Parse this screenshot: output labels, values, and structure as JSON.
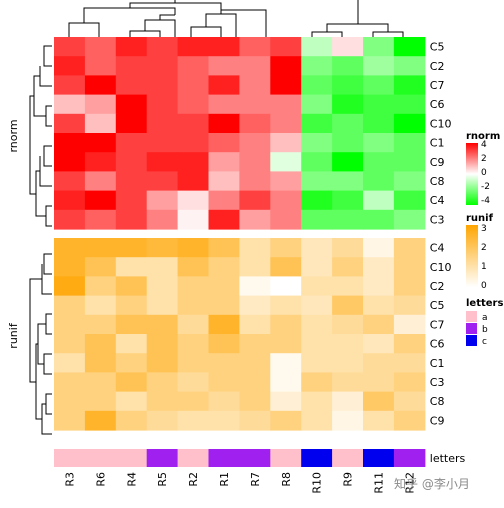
{
  "chart_data": [
    {
      "type": "heatmap",
      "name_label": "rnorm",
      "columns": [
        "R3",
        "R6",
        "R4",
        "R5",
        "R2",
        "R1",
        "R7",
        "R8",
        "R10",
        "R9",
        "R11",
        "R12"
      ],
      "rows": [
        "C5",
        "C2",
        "C7",
        "C6",
        "C10",
        "C1",
        "C9",
        "C8",
        "C4",
        "C3"
      ],
      "values": [
        [
          3.0,
          2.5,
          3.5,
          3.0,
          3.5,
          3.5,
          2.5,
          3.0,
          -1.0,
          0.5,
          -2.0,
          -4.0
        ],
        [
          3.5,
          2.5,
          3.0,
          3.0,
          2.5,
          2.0,
          2.0,
          4.0,
          -2.0,
          -2.5,
          -1.5,
          -2.0
        ],
        [
          3.0,
          4.0,
          3.0,
          3.0,
          2.5,
          3.5,
          2.0,
          4.0,
          -2.5,
          -3.0,
          -2.5,
          -3.5
        ],
        [
          1.0,
          1.5,
          4.0,
          3.0,
          2.5,
          2.0,
          2.0,
          2.0,
          -2.0,
          -3.5,
          -3.0,
          -3.0
        ],
        [
          3.0,
          1.0,
          4.0,
          3.0,
          3.0,
          4.0,
          2.5,
          2.0,
          -3.0,
          -2.5,
          -3.0,
          -4.0
        ],
        [
          4.0,
          4.0,
          3.0,
          3.0,
          3.0,
          2.5,
          2.0,
          1.0,
          -2.0,
          -2.5,
          -2.0,
          -2.5
        ],
        [
          4.0,
          3.5,
          3.0,
          3.5,
          3.5,
          1.5,
          2.0,
          -0.5,
          -2.5,
          -4.0,
          -2.5,
          -2.5
        ],
        [
          3.0,
          2.0,
          3.0,
          3.0,
          3.5,
          1.0,
          2.0,
          1.5,
          -2.0,
          -2.0,
          -2.5,
          -2.0
        ],
        [
          3.5,
          4.0,
          3.0,
          1.5,
          0.5,
          2.0,
          3.0,
          2.0,
          -3.5,
          -3.0,
          -1.0,
          -3.0
        ],
        [
          3.0,
          2.5,
          3.0,
          2.0,
          0.2,
          3.5,
          1.5,
          2.0,
          -2.5,
          -2.5,
          -2.5,
          -2.0
        ]
      ],
      "legend": {
        "title": "rnorm",
        "ticks": [
          4,
          2,
          0,
          -2,
          -4
        ]
      }
    },
    {
      "type": "heatmap",
      "name_label": "runif",
      "columns": [
        "R3",
        "R6",
        "R4",
        "R5",
        "R2",
        "R1",
        "R7",
        "R8",
        "R10",
        "R9",
        "R11",
        "R12"
      ],
      "rows": [
        "C4",
        "C10",
        "C2",
        "C5",
        "C7",
        "C6",
        "C1",
        "C3",
        "C8",
        "C9"
      ],
      "values": [
        [
          2.5,
          2.5,
          2.5,
          2.3,
          2.5,
          2.0,
          1.0,
          1.5,
          0.8,
          1.2,
          0.3,
          1.5
        ],
        [
          2.5,
          2.0,
          1.0,
          1.0,
          2.0,
          1.5,
          1.0,
          2.0,
          0.8,
          1.5,
          0.7,
          1.5
        ],
        [
          2.8,
          1.5,
          2.0,
          1.0,
          1.5,
          1.5,
          0.2,
          0.0,
          1.0,
          1.0,
          0.7,
          1.5
        ],
        [
          1.5,
          1.0,
          1.5,
          1.0,
          1.5,
          1.5,
          0.7,
          1.0,
          0.8,
          1.8,
          1.0,
          1.2
        ],
        [
          1.5,
          1.5,
          2.0,
          2.0,
          1.2,
          2.5,
          1.0,
          1.5,
          1.0,
          1.2,
          1.5,
          0.5
        ],
        [
          1.5,
          2.0,
          1.0,
          2.0,
          1.5,
          2.0,
          1.5,
          1.5,
          1.0,
          1.0,
          0.8,
          1.5
        ],
        [
          1.0,
          2.0,
          1.5,
          2.0,
          1.5,
          1.5,
          1.5,
          0.2,
          1.0,
          1.0,
          1.2,
          1.2
        ],
        [
          1.5,
          1.5,
          2.0,
          1.5,
          1.2,
          1.5,
          1.5,
          0.2,
          1.5,
          1.2,
          1.2,
          1.5
        ],
        [
          1.5,
          1.5,
          1.0,
          1.5,
          1.5,
          1.2,
          1.5,
          0.5,
          1.0,
          0.5,
          1.8,
          1.2
        ],
        [
          1.5,
          2.5,
          1.5,
          1.2,
          1.0,
          1.0,
          1.2,
          1.5,
          1.0,
          0.3,
          1.0,
          1.5
        ]
      ],
      "legend": {
        "title": "runif",
        "ticks": [
          3,
          2,
          1,
          0
        ]
      }
    },
    {
      "type": "heatmap",
      "name_label": "letters",
      "columns": [
        "R3",
        "R6",
        "R4",
        "R5",
        "R2",
        "R1",
        "R7",
        "R8",
        "R10",
        "R9",
        "R11",
        "R12"
      ],
      "values": [
        "a",
        "a",
        "a",
        "b",
        "a",
        "b",
        "b",
        "a",
        "c",
        "a",
        "c",
        "b"
      ],
      "legend": {
        "title": "letters",
        "levels": [
          "a",
          "b",
          "c"
        ],
        "colors": [
          "#ffc0cb",
          "#a020f0",
          "#0000ee"
        ]
      }
    }
  ],
  "watermark": "知乎 @李小月"
}
